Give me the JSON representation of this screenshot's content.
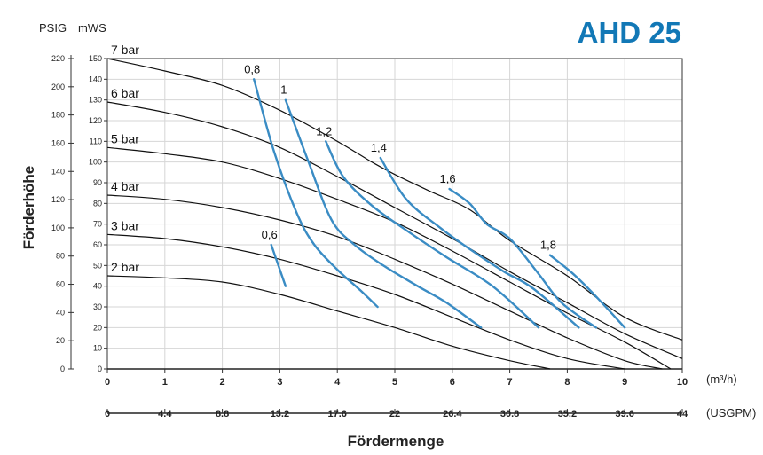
{
  "chart_data": {
    "type": "line",
    "title": "AHD 25",
    "xlabel": "Fördermenge",
    "ylabel": "Förderhöhe",
    "x_unit": "(m³/h)",
    "x2_unit": "(USGPM)",
    "y_unit_psig": "PSIG",
    "y_unit_mws": "mWS",
    "xlim": [
      0,
      10
    ],
    "ylim_mws": [
      0,
      150
    ],
    "x_ticks": [
      "0",
      "1",
      "2",
      "3",
      "4",
      "5",
      "6",
      "7",
      "8",
      "9",
      "10"
    ],
    "x2_ticks": [
      "0",
      "4.4",
      "8.8",
      "13.2",
      "17.6",
      "22",
      "26.4",
      "30.8",
      "35.2",
      "39.6",
      "44"
    ],
    "y_ticks_mws": [
      "0",
      "10",
      "20",
      "30",
      "40",
      "50",
      "60",
      "70",
      "80",
      "90",
      "100",
      "110",
      "120",
      "130",
      "140",
      "150"
    ],
    "y_ticks_psig": [
      "0",
      "20",
      "40",
      "60",
      "80",
      "100",
      "120",
      "140",
      "160",
      "180",
      "200",
      "220"
    ],
    "grid": true,
    "pressure_series": [
      {
        "name": "7 bar",
        "x": [
          0,
          1,
          2,
          3,
          4,
          4.6,
          5,
          5.6,
          6.3,
          7,
          8,
          9,
          10
        ],
        "y": [
          150,
          144,
          137,
          125,
          110,
          100,
          94,
          86,
          77,
          62,
          45,
          25,
          14
        ]
      },
      {
        "name": "6 bar",
        "x": [
          0,
          1,
          2,
          3,
          4,
          5,
          6,
          7,
          8,
          9,
          10
        ],
        "y": [
          129,
          124,
          117,
          107,
          93,
          78,
          63,
          47,
          32,
          17,
          5
        ]
      },
      {
        "name": "5 bar",
        "x": [
          0,
          1,
          2,
          3,
          4,
          5,
          6,
          7,
          8,
          9,
          9.8
        ],
        "y": [
          107,
          104,
          100,
          92,
          82,
          71,
          57,
          42,
          27,
          13,
          0
        ]
      },
      {
        "name": "4 bar",
        "x": [
          0,
          1,
          2,
          3,
          4,
          5,
          6,
          7,
          8,
          9,
          9.65
        ],
        "y": [
          84,
          82,
          78,
          72,
          64,
          53,
          41,
          28,
          15,
          4,
          0
        ]
      },
      {
        "name": "3 bar",
        "x": [
          0,
          1,
          2,
          3,
          4,
          5,
          6,
          7,
          8,
          9
        ],
        "y": [
          65,
          63,
          59,
          53,
          45,
          36,
          25,
          14,
          5,
          0
        ]
      },
      {
        "name": "2 bar",
        "x": [
          0,
          1,
          2,
          3,
          4,
          5,
          6,
          7,
          7.7
        ],
        "y": [
          45,
          44,
          42,
          36,
          28,
          20,
          11,
          4,
          0
        ]
      }
    ],
    "air_series": [
      {
        "name": "0,6",
        "x": [
          2.85,
          3.1
        ],
        "y": [
          60,
          40
        ]
      },
      {
        "name": "0,8",
        "x": [
          2.55,
          2.9,
          3.3,
          3.6,
          4.0,
          4.4,
          4.7
        ],
        "y": [
          140,
          105,
          75,
          60,
          48,
          38,
          30
        ]
      },
      {
        "name": "1",
        "x": [
          3.1,
          3.5,
          3.9,
          4.3,
          4.8,
          5.4,
          5.9,
          6.5
        ],
        "y": [
          130,
          100,
          72,
          60,
          50,
          40,
          32,
          20
        ]
      },
      {
        "name": "1,2",
        "x": [
          3.8,
          4.1,
          4.6,
          5.2,
          5.9,
          6.7,
          7.5
        ],
        "y": [
          110,
          93,
          79,
          67,
          54,
          40,
          20
        ]
      },
      {
        "name": "1,4",
        "x": [
          4.75,
          5.2,
          5.8,
          6.3,
          6.9,
          7.4,
          8.2
        ],
        "y": [
          102,
          82,
          68,
          58,
          47,
          39,
          20
        ]
      },
      {
        "name": "1,6",
        "x": [
          5.95,
          6.3,
          6.6,
          7.0,
          7.5,
          7.9,
          8.5
        ],
        "y": [
          87,
          80,
          70,
          63,
          46,
          32,
          20
        ]
      },
      {
        "name": "1,8",
        "x": [
          7.7,
          8.1,
          8.5,
          9.0
        ],
        "y": [
          55,
          46,
          35,
          20
        ]
      }
    ]
  }
}
